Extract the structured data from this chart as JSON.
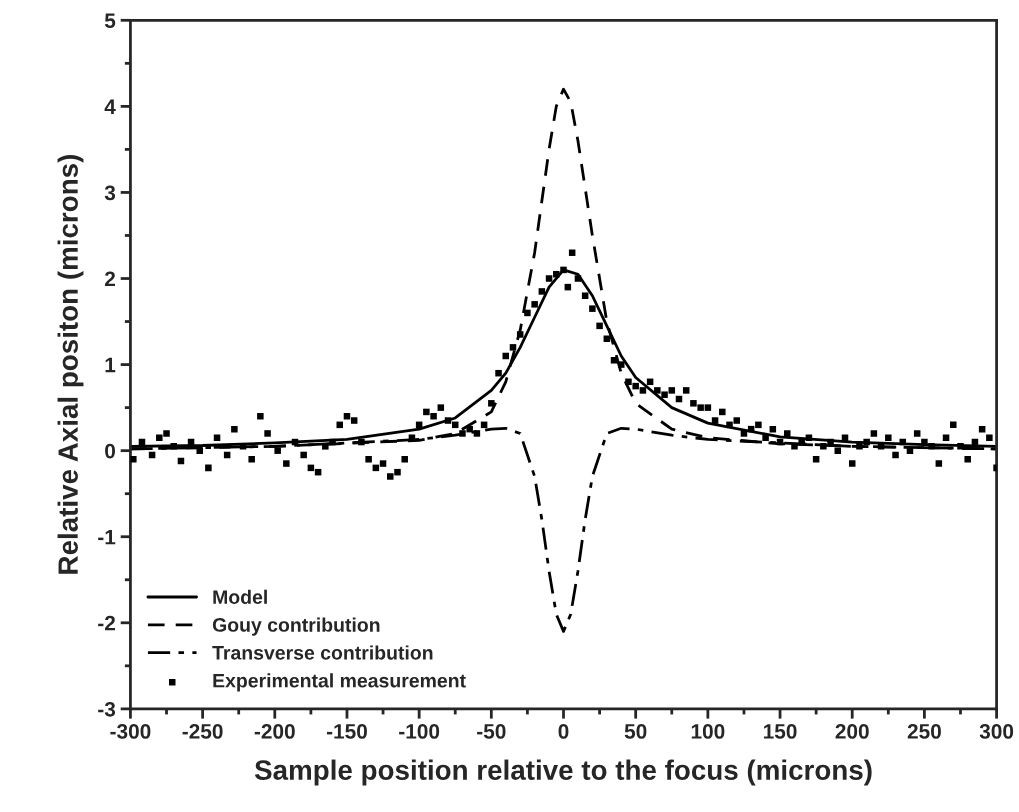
{
  "chart_data": {
    "type": "line",
    "xlabel": "Sample position relative to the focus (microns)",
    "ylabel": "Relative Axial positon (microns)",
    "xlim": [
      -300,
      300
    ],
    "xticks": [
      -300,
      -250,
      -200,
      -150,
      -100,
      -50,
      0,
      50,
      100,
      150,
      200,
      250,
      300
    ],
    "ylim": [
      -3,
      5
    ],
    "yticks": [
      -3,
      -2,
      -1,
      0,
      1,
      2,
      3,
      4,
      5
    ],
    "grid": false,
    "legend": "bottom left",
    "series": [
      {
        "name": "Model",
        "line_style": "solid",
        "color": "#000000",
        "x": [
          -300,
          -250,
          -200,
          -150,
          -100,
          -75,
          -50,
          -40,
          -30,
          -20,
          -10,
          0,
          10,
          20,
          30,
          40,
          50,
          75,
          100,
          150,
          200,
          250,
          300
        ],
        "values": [
          0.05,
          0.06,
          0.09,
          0.13,
          0.25,
          0.38,
          0.7,
          0.9,
          1.2,
          1.55,
          1.9,
          2.1,
          2.05,
          1.8,
          1.45,
          1.1,
          0.85,
          0.5,
          0.32,
          0.16,
          0.1,
          0.07,
          0.05
        ]
      },
      {
        "name": "Gouy contribution",
        "line_style": "dashed",
        "color": "#000000",
        "x": [
          -300,
          -200,
          -100,
          -75,
          -50,
          -40,
          -30,
          -20,
          -10,
          -5,
          0,
          5,
          10,
          20,
          30,
          40,
          50,
          75,
          100,
          150,
          200,
          300
        ],
        "values": [
          0.02,
          0.05,
          0.12,
          0.2,
          0.45,
          0.8,
          1.4,
          2.3,
          3.5,
          4.0,
          4.2,
          4.05,
          3.6,
          2.5,
          1.5,
          0.9,
          0.55,
          0.25,
          0.15,
          0.08,
          0.05,
          0.02
        ]
      },
      {
        "name": "Transverse contribution",
        "line_style": "dashdot",
        "color": "#000000",
        "x": [
          -300,
          -200,
          -100,
          -75,
          -50,
          -40,
          -30,
          -20,
          -15,
          -10,
          -5,
          0,
          5,
          10,
          15,
          20,
          30,
          40,
          50,
          75,
          100,
          200,
          300
        ],
        "values": [
          0.02,
          0.05,
          0.13,
          0.18,
          0.25,
          0.26,
          0.2,
          -0.3,
          -0.8,
          -1.4,
          -1.9,
          -2.1,
          -1.9,
          -1.4,
          -0.8,
          -0.3,
          0.2,
          0.26,
          0.25,
          0.18,
          0.13,
          0.05,
          0.02
        ]
      },
      {
        "name": "Experimental measurement",
        "type": "scatter",
        "marker": "square",
        "color": "#000000",
        "x": [
          -298,
          -292,
          -285,
          -280,
          -275,
          -270,
          -265,
          -258,
          -252,
          -246,
          -240,
          -233,
          -228,
          -222,
          -216,
          -210,
          -205,
          -198,
          -192,
          -186,
          -180,
          -175,
          -170,
          -165,
          -160,
          -155,
          -150,
          -145,
          -140,
          -135,
          -130,
          -125,
          -120,
          -115,
          -110,
          -105,
          -100,
          -95,
          -90,
          -85,
          -80,
          -75,
          -70,
          -65,
          -60,
          -55,
          -50,
          -45,
          -40,
          -35,
          -30,
          -25,
          -20,
          -15,
          -10,
          -5,
          0,
          3,
          6,
          10,
          15,
          20,
          25,
          30,
          35,
          40,
          45,
          50,
          55,
          60,
          65,
          70,
          75,
          80,
          85,
          90,
          95,
          100,
          105,
          110,
          115,
          120,
          125,
          130,
          135,
          140,
          145,
          150,
          155,
          160,
          165,
          170,
          175,
          180,
          185,
          190,
          195,
          200,
          205,
          210,
          215,
          220,
          225,
          230,
          235,
          240,
          245,
          250,
          255,
          260,
          265,
          270,
          275,
          280,
          285,
          290,
          295,
          300
        ],
        "values": [
          -0.1,
          0.1,
          -0.05,
          0.15,
          0.2,
          0.05,
          -0.12,
          0.1,
          0.0,
          -0.2,
          0.15,
          -0.05,
          0.25,
          0.05,
          -0.1,
          0.4,
          0.2,
          0.0,
          -0.15,
          0.1,
          -0.05,
          -0.2,
          -0.25,
          0.05,
          0.1,
          0.3,
          0.4,
          0.35,
          0.1,
          -0.1,
          -0.2,
          -0.15,
          -0.3,
          -0.25,
          -0.1,
          0.15,
          0.3,
          0.45,
          0.4,
          0.5,
          0.35,
          0.3,
          0.2,
          0.25,
          0.2,
          0.3,
          0.55,
          0.9,
          1.1,
          1.2,
          1.35,
          1.6,
          1.7,
          1.85,
          2.0,
          2.05,
          2.1,
          1.9,
          2.3,
          2.0,
          1.8,
          1.65,
          1.45,
          1.3,
          1.05,
          1.0,
          0.8,
          0.75,
          0.7,
          0.8,
          0.7,
          0.65,
          0.7,
          0.6,
          0.7,
          0.55,
          0.5,
          0.5,
          0.35,
          0.45,
          0.3,
          0.35,
          0.2,
          0.25,
          0.3,
          0.15,
          0.25,
          0.1,
          0.2,
          0.05,
          0.1,
          0.15,
          -0.1,
          0.05,
          0.1,
          0.0,
          0.15,
          -0.15,
          0.05,
          0.1,
          0.2,
          0.05,
          0.15,
          -0.05,
          0.1,
          0.0,
          0.2,
          0.1,
          0.05,
          -0.15,
          0.15,
          0.3,
          0.05,
          -0.1,
          0.1,
          0.25,
          0.15,
          -0.2
        ]
      }
    ]
  }
}
